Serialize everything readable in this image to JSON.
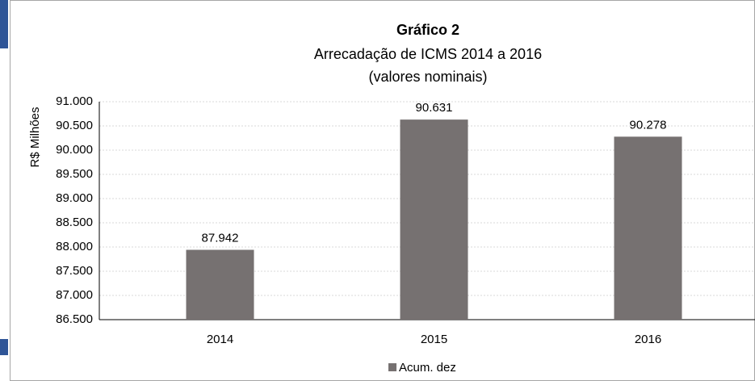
{
  "chart_data": {
    "type": "bar",
    "title": "Gráfico 2",
    "subtitle": [
      "Arrecadação de ICMS 2014 a 2016",
      "(valores nominais)"
    ],
    "y_label": "R$ Milhões",
    "categories": [
      "2014",
      "2015",
      "2016"
    ],
    "series": [
      {
        "name": "Acum. dez",
        "color": "#767171",
        "values": [
          87942,
          90631,
          90278
        ],
        "value_labels": [
          "87.942",
          "90.631",
          "90.278"
        ]
      }
    ],
    "ylim": [
      86500,
      91000
    ],
    "yticks": [
      {
        "value": 86500,
        "label": "86.500"
      },
      {
        "value": 87000,
        "label": "87.000"
      },
      {
        "value": 87500,
        "label": "87.500"
      },
      {
        "value": 88000,
        "label": "88.000"
      },
      {
        "value": 88500,
        "label": "88.500"
      },
      {
        "value": 89000,
        "label": "89.000"
      },
      {
        "value": 89500,
        "label": "89.500"
      },
      {
        "value": 90000,
        "label": "90.000"
      },
      {
        "value": 90500,
        "label": "90.500"
      },
      {
        "value": 91000,
        "label": "91.000"
      }
    ],
    "grid": true,
    "legend": "bottom"
  }
}
